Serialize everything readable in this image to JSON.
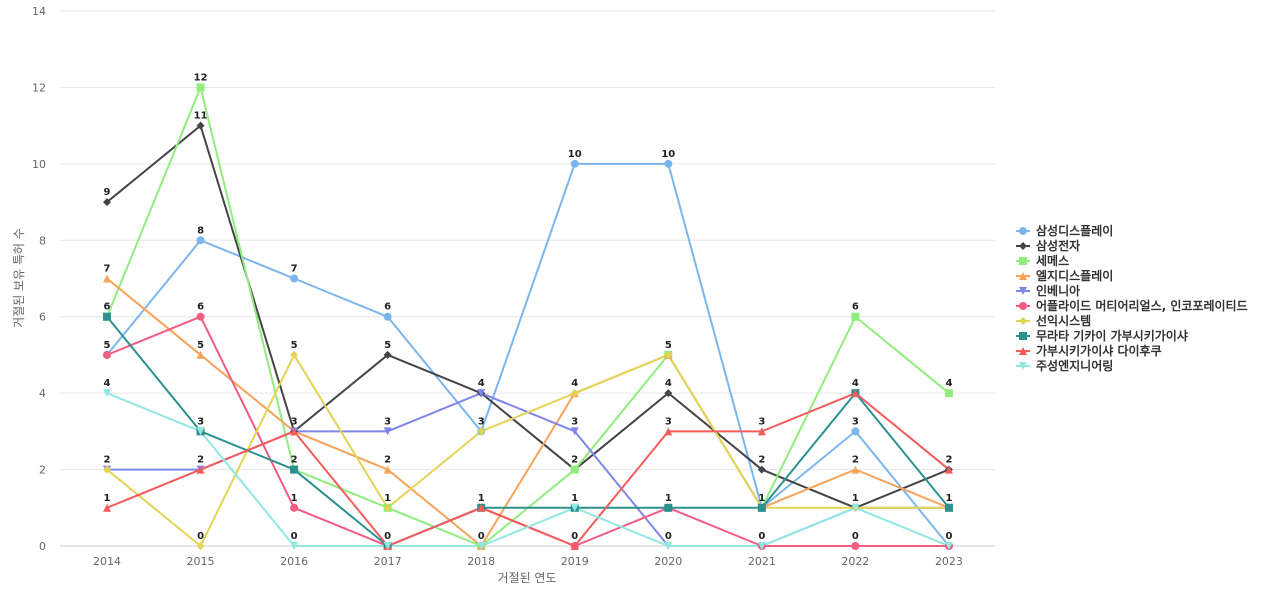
{
  "chart_data": {
    "type": "line",
    "title": "",
    "xlabel": "거절된 연도",
    "ylabel": "거절된 보유 특허 수",
    "ylim": [
      0,
      14
    ],
    "yticks": [
      0,
      2,
      4,
      6,
      8,
      10,
      12,
      14
    ],
    "grid": true,
    "legend_position": "right",
    "categories": [
      "2014",
      "2015",
      "2016",
      "2017",
      "2018",
      "2019",
      "2020",
      "2021",
      "2022",
      "2023"
    ],
    "series": [
      {
        "name": "삼성디스플레이",
        "color": "#7cb5ec",
        "marker": "circle",
        "values": [
          5,
          8,
          7,
          6,
          3,
          10,
          10,
          1,
          3,
          0
        ]
      },
      {
        "name": "삼성전자",
        "color": "#434348",
        "marker": "diamond",
        "values": [
          9,
          11,
          3,
          5,
          4,
          2,
          4,
          2,
          1,
          2
        ]
      },
      {
        "name": "세메스",
        "color": "#90ed7d",
        "marker": "square",
        "values": [
          6,
          12,
          2,
          1,
          0,
          2,
          5,
          1,
          6,
          4
        ]
      },
      {
        "name": "엘지디스플레이",
        "color": "#f7a35c",
        "marker": "triangle",
        "values": [
          7,
          5,
          3,
          2,
          0,
          4,
          5,
          1,
          2,
          1
        ]
      },
      {
        "name": "인베니아",
        "color": "#8085e9",
        "marker": "triangle-down",
        "values": [
          2,
          2,
          3,
          3,
          4,
          3,
          0,
          0,
          1,
          1
        ]
      },
      {
        "name": "어플라이드 머티어리얼스, 인코포레이티드",
        "color": "#f15c80",
        "marker": "circle",
        "values": [
          5,
          6,
          1,
          0,
          1,
          0,
          1,
          0,
          0,
          0
        ]
      },
      {
        "name": "선익시스템",
        "color": "#e4d354",
        "marker": "diamond",
        "values": [
          2,
          0,
          5,
          1,
          3,
          4,
          5,
          1,
          1,
          1
        ]
      },
      {
        "name": "무라타 기카이 가부시키가이샤",
        "color": "#2b908f",
        "marker": "square",
        "values": [
          6,
          3,
          2,
          0,
          1,
          1,
          1,
          1,
          4,
          1
        ]
      },
      {
        "name": "가부시키가이샤 다이후쿠",
        "color": "#f45b5b",
        "marker": "triangle",
        "values": [
          1,
          2,
          3,
          0,
          1,
          0,
          3,
          3,
          4,
          2
        ]
      },
      {
        "name": "주성엔지니어링",
        "color": "#91e8e1",
        "marker": "triangle-down",
        "values": [
          4,
          3,
          0,
          0,
          0,
          1,
          0,
          0,
          1,
          0
        ]
      }
    ],
    "data_labels": {
      "2014": {
        "5": "5",
        "9": "9",
        "6": "6",
        "7": "7",
        "2": "2",
        "1": "1",
        "4": "4"
      },
      "2015": {
        "8": "8",
        "11": "11",
        "12": "12",
        "5": "5",
        "6": "6",
        "0": "0",
        "3": "3",
        "2": "2"
      },
      "2016": {
        "7": "7",
        "3": "3",
        "2": "2",
        "1": "1",
        "5": "5",
        "0": "0"
      },
      "2017": {
        "6": "6",
        "5": "5",
        "1": "1",
        "2": "2",
        "3": "3",
        "0": "0"
      },
      "2018": {
        "3": "3",
        "4": "4",
        "0": "0",
        "1": "1"
      },
      "2019": {
        "10": "10",
        "2": "2",
        "4": "4",
        "3": "3",
        "0": "0",
        "1": "1"
      },
      "2020": {
        "10": "10",
        "4": "4",
        "5": "5",
        "0": "0",
        "1": "1",
        "3": "3"
      },
      "2021": {
        "1": "1",
        "2": "2",
        "0": "0",
        "3": "3"
      },
      "2022": {
        "3": "3",
        "1": "1",
        "6": "6",
        "2": "2",
        "0": "0",
        "4": "4"
      },
      "2023": {
        "0": "0",
        "2": "2",
        "4": "4",
        "1": "1"
      }
    }
  }
}
